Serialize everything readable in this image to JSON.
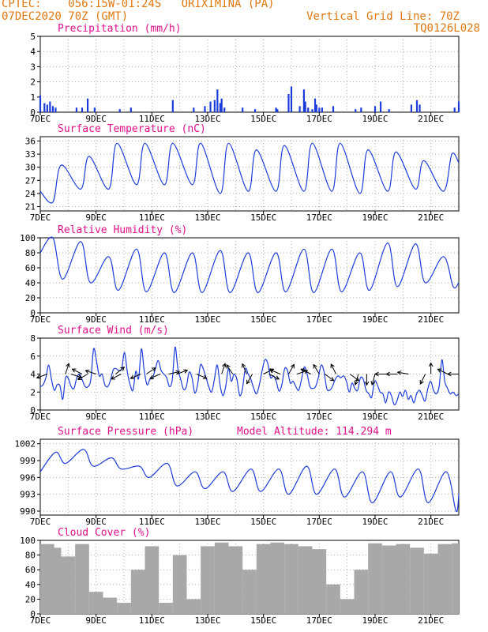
{
  "header": {
    "line1": "CPTEC:    056:15W-01:24S   ORIXIMINA (PA)",
    "line2": "07DEC2020 70Z (GMT)",
    "grid_line": "Vertical Grid Line: 70Z",
    "code": "TQ0126L028",
    "header_color": "#e07810"
  },
  "colors": {
    "title": "#e0108a",
    "series": "#1c3cdc",
    "cloud": "#a8a8a8",
    "grid": "#999999"
  },
  "x_ticks": [
    {
      "day": 0,
      "label": "7DEC"
    },
    {
      "day": 2,
      "label": "9DEC"
    },
    {
      "day": 4,
      "label": "11DEC"
    },
    {
      "day": 6,
      "label": "13DEC"
    },
    {
      "day": 8,
      "label": "15DEC"
    },
    {
      "day": 10,
      "label": "17DEC"
    },
    {
      "day": 12,
      "label": "19DEC"
    },
    {
      "day": 14,
      "label": "21DEC"
    }
  ],
  "chart_data": [
    {
      "type": "bar",
      "title": "Precipitation (mm/h)",
      "ylim": [
        0,
        5
      ],
      "yticks": [
        0,
        1,
        2,
        3,
        4,
        5
      ],
      "x": [
        0.0,
        0.15,
        0.25,
        0.35,
        0.45,
        0.55,
        1.3,
        1.5,
        1.7,
        1.95,
        2.85,
        3.25,
        4.75,
        5.5,
        5.9,
        6.1,
        6.25,
        6.35,
        6.45,
        6.5,
        6.6,
        7.25,
        7.7,
        8.45,
        8.5,
        8.9,
        9.0,
        9.3,
        9.45,
        9.5,
        9.6,
        9.75,
        9.85,
        9.9,
        10.0,
        10.1,
        10.5,
        11.3,
        11.5,
        12.0,
        12.2,
        12.5,
        13.3,
        13.5,
        13.6,
        14.85,
        15.0
      ],
      "values": [
        1.1,
        0.6,
        0.5,
        0.7,
        0.4,
        0.3,
        0.3,
        0.3,
        0.9,
        0.3,
        0.2,
        0.3,
        0.8,
        0.3,
        0.4,
        0.7,
        0.8,
        1.5,
        0.6,
        0.9,
        0.3,
        0.3,
        0.2,
        0.3,
        0.2,
        1.2,
        1.7,
        0.4,
        1.5,
        0.7,
        0.3,
        0.2,
        0.9,
        0.5,
        0.3,
        0.3,
        0.4,
        0.2,
        0.3,
        0.4,
        0.7,
        0.2,
        0.5,
        0.8,
        0.5,
        0.3,
        0.7
      ]
    },
    {
      "type": "line",
      "title": "Surface Temperature (nC)",
      "ylim": [
        20,
        37
      ],
      "yticks": [
        21,
        24,
        27,
        30,
        33,
        36
      ],
      "base": [
        22,
        25,
        25,
        26,
        26,
        26,
        24,
        24.5,
        24.5,
        24.5,
        24.5,
        24,
        24.5,
        25,
        24.5
      ],
      "peak": [
        30.5,
        32.5,
        35.5,
        35.5,
        35.5,
        35.5,
        35.5,
        34,
        35,
        35.5,
        35.5,
        34,
        33.5,
        31.5,
        33
      ],
      "start": 24.5,
      "end": 31
    },
    {
      "type": "line",
      "title": "Relative Humidity (%)",
      "ylim": [
        0,
        100
      ],
      "yticks": [
        0,
        20,
        40,
        60,
        80,
        100
      ],
      "base": [
        45,
        40,
        30,
        28,
        27,
        27,
        27,
        27,
        28,
        27,
        28,
        30,
        35,
        40,
        35
      ],
      "peak": [
        100,
        95,
        75,
        85,
        80,
        80,
        83,
        80,
        80,
        85,
        85,
        80,
        93,
        92,
        75
      ],
      "start": 80,
      "end": 40
    },
    {
      "type": "line",
      "title": "Surface Wind (m/s)",
      "ylim": [
        0,
        8
      ],
      "yticks": [
        0,
        2,
        4,
        6,
        8
      ],
      "values": [
        2.6,
        2.8,
        3.6,
        5.0,
        3.4,
        2.2,
        2.8,
        2.7,
        1.2,
        3.6,
        3.5,
        2.6,
        2.4,
        3.6,
        4.0,
        3.3,
        2.6,
        2.6,
        3.4,
        6.8,
        5.5,
        3.8,
        4.0,
        2.8,
        2.6,
        3.3,
        4.5,
        4.6,
        4.4,
        4.6,
        6.4,
        4.2,
        2.8,
        2.2,
        4.3,
        3.5,
        6.8,
        4.4,
        2.8,
        3.4,
        3.6,
        4.6,
        5.5,
        4.4,
        4.0,
        3.6,
        2.6,
        3.4,
        7.0,
        4.6,
        3.4,
        2.3,
        2.6,
        4.2,
        3.6,
        1.9,
        2.8,
        5.0,
        4.6,
        3.6,
        2.6,
        2.0,
        3.4,
        5.0,
        2.8,
        1.6,
        2.6,
        4.6,
        3.2,
        4.0,
        3.4,
        1.6,
        2.4,
        4.6,
        4.0,
        3.4,
        2.4,
        1.8,
        2.8,
        4.4,
        5.6,
        5.2,
        3.6,
        3.8,
        3.2,
        2.1,
        2.8,
        4.6,
        4.4,
        3.0,
        3.2,
        2.6,
        2.2,
        3.4,
        4.8,
        4.0,
        2.6,
        2.4,
        2.6,
        3.6,
        5.0,
        4.3,
        2.4,
        2.2,
        2.6,
        3.4,
        3.8,
        3.6,
        3.8,
        3.2,
        2.0,
        3.0,
        2.4,
        2.2,
        3.6,
        3.4,
        2.2,
        1.8,
        1.4,
        3.2,
        2.8,
        2.0,
        1.8,
        0.8,
        2.0,
        1.6,
        0.6,
        1.0,
        2.0,
        1.5,
        2.2,
        1.2,
        1.6,
        0.8,
        1.8,
        2.2,
        1.6,
        1.0,
        2.4,
        3.2,
        2.2,
        1.8,
        2.6,
        5.6,
        3.2,
        2.4,
        1.8,
        2.0,
        1.6,
        1.8
      ],
      "arrows": [
        {
          "day": 0.25,
          "u": -1.6,
          "v": -0.6
        },
        {
          "day": 0.9,
          "u": 0.6,
          "v": 1.8
        },
        {
          "day": 1.1,
          "u": 1.2,
          "v": -0.4
        },
        {
          "day": 1.5,
          "u": -1.2,
          "v": 0.6
        },
        {
          "day": 1.7,
          "u": -1.4,
          "v": -0.8
        },
        {
          "day": 2.0,
          "u": -1.2,
          "v": 0.4
        },
        {
          "day": 2.7,
          "u": 1.0,
          "v": 0.8
        },
        {
          "day": 2.9,
          "u": -1.2,
          "v": -0.6
        },
        {
          "day": 3.6,
          "u": -1.4,
          "v": -0.6
        },
        {
          "day": 3.8,
          "u": 1.2,
          "v": 0.8
        },
        {
          "day": 4.3,
          "u": -1.4,
          "v": -0.6
        },
        {
          "day": 4.6,
          "u": 1.8,
          "v": 0.4
        },
        {
          "day": 4.9,
          "u": 1.6,
          "v": 0.6
        },
        {
          "day": 5.6,
          "u": 1.2,
          "v": -0.5
        },
        {
          "day": 6.5,
          "u": 0.6,
          "v": 1.8
        },
        {
          "day": 6.9,
          "u": -0.8,
          "v": 1.2
        },
        {
          "day": 7.4,
          "u": -0.6,
          "v": 1.4
        },
        {
          "day": 7.6,
          "u": -0.8,
          "v": -1.4
        },
        {
          "day": 8.0,
          "u": 1.2,
          "v": 0.6
        },
        {
          "day": 8.2,
          "u": 1.0,
          "v": -0.5
        },
        {
          "day": 8.6,
          "u": -1.4,
          "v": 0.6
        },
        {
          "day": 8.9,
          "u": 0.8,
          "v": 1.4
        },
        {
          "day": 9.2,
          "u": 1.2,
          "v": 0.4
        },
        {
          "day": 9.7,
          "u": -1.2,
          "v": 0.6
        },
        {
          "day": 10.0,
          "u": -0.6,
          "v": 1.0
        },
        {
          "day": 10.2,
          "u": 0.8,
          "v": -0.6
        },
        {
          "day": 10.6,
          "u": -0.6,
          "v": 1.2
        },
        {
          "day": 11.1,
          "u": 0.8,
          "v": -0.6
        },
        {
          "day": 11.4,
          "u": -0.4,
          "v": -1.4
        },
        {
          "day": 11.7,
          "u": 0.0,
          "v": -1.4
        },
        {
          "day": 12.0,
          "u": -0.4,
          "v": -1.4
        },
        {
          "day": 12.4,
          "u": -1.2,
          "v": 0.0
        },
        {
          "day": 12.8,
          "u": -1.4,
          "v": 0.0
        },
        {
          "day": 13.2,
          "u": -1.2,
          "v": 0.2
        },
        {
          "day": 13.8,
          "u": -0.6,
          "v": -1.2
        },
        {
          "day": 14.0,
          "u": 0.0,
          "v": 1.0
        },
        {
          "day": 14.6,
          "u": -1.2,
          "v": 0.6
        },
        {
          "day": 15.0,
          "u": -1.2,
          "v": 0.0
        }
      ]
    },
    {
      "type": "line",
      "title": "Surface Pressure (hPa)",
      "subtitle": "Model Altitude: 114.294 m",
      "ylim": [
        989.3,
        1002.8
      ],
      "yticks": [
        990,
        993,
        996,
        999,
        1002
      ],
      "base": [
        998.5,
        998,
        997.5,
        996,
        994.5,
        994,
        993.5,
        993.5,
        993,
        993,
        992.5,
        991.5,
        992.5,
        991.5,
        990
      ],
      "peak": [
        1000.5,
        1001,
        999.5,
        998,
        998.5,
        997,
        997,
        997.5,
        997.5,
        998,
        997.5,
        997,
        997,
        997.5,
        997
      ],
      "start": 997,
      "end": 993
    },
    {
      "type": "bar",
      "title": "Cloud Cover (%)",
      "ylim": [
        0,
        100
      ],
      "yticks": [
        0,
        20,
        40,
        60,
        80,
        100
      ],
      "x": [
        0,
        0.5,
        1,
        1.5,
        2,
        2.5,
        3,
        3.5,
        4,
        4.5,
        5,
        5.5,
        6,
        6.5,
        7,
        7.5,
        8,
        8.5,
        9,
        9.5,
        10,
        10.5,
        11,
        11.5,
        12,
        12.5,
        13,
        13.5,
        14,
        14.5,
        15
      ],
      "values": [
        95,
        90,
        78,
        95,
        30,
        22,
        15,
        60,
        92,
        15,
        80,
        20,
        92,
        97,
        92,
        60,
        95,
        97,
        95,
        92,
        88,
        40,
        20,
        60,
        96,
        93,
        95,
        90,
        82,
        95,
        96
      ]
    }
  ]
}
